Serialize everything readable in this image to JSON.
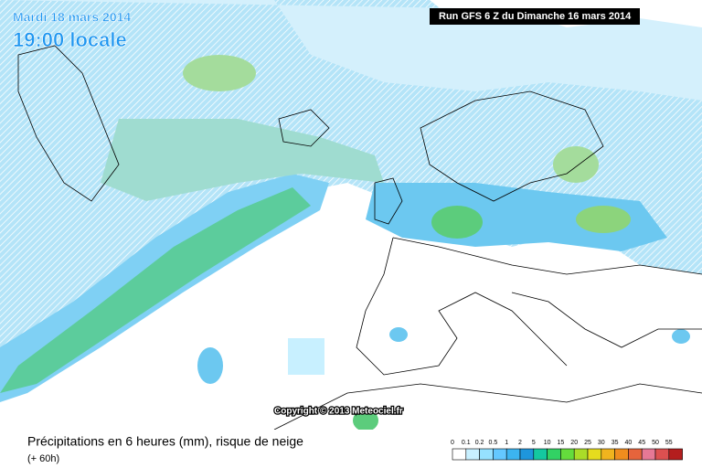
{
  "header": {
    "title": "Mardi 18 mars 2014",
    "time": "19:00 locale",
    "run": "Run GFS 6 Z du Dimanche 16 mars 2014"
  },
  "copyright": "Copyright © 2013 Meteociel.fr",
  "footer": {
    "caption": "Précipitations en 6 heures (mm), risque de neige",
    "lead": "(+ 60h)"
  },
  "legend": {
    "ticks": [
      0,
      0.1,
      0.2,
      0.5,
      1,
      2,
      5,
      10,
      15,
      20,
      25,
      30,
      35,
      40,
      45,
      50,
      55
    ],
    "colors": [
      "#ffffff",
      "#c8f0ff",
      "#96e1ff",
      "#64c8ff",
      "#3cb4f0",
      "#1e96dc",
      "#14c8a0",
      "#32d264",
      "#64dc3c",
      "#aadc28",
      "#e6dc1e",
      "#f0b41e",
      "#f08c1e",
      "#e6643c",
      "#e67896",
      "#dc5050",
      "#b41e1e"
    ]
  }
}
